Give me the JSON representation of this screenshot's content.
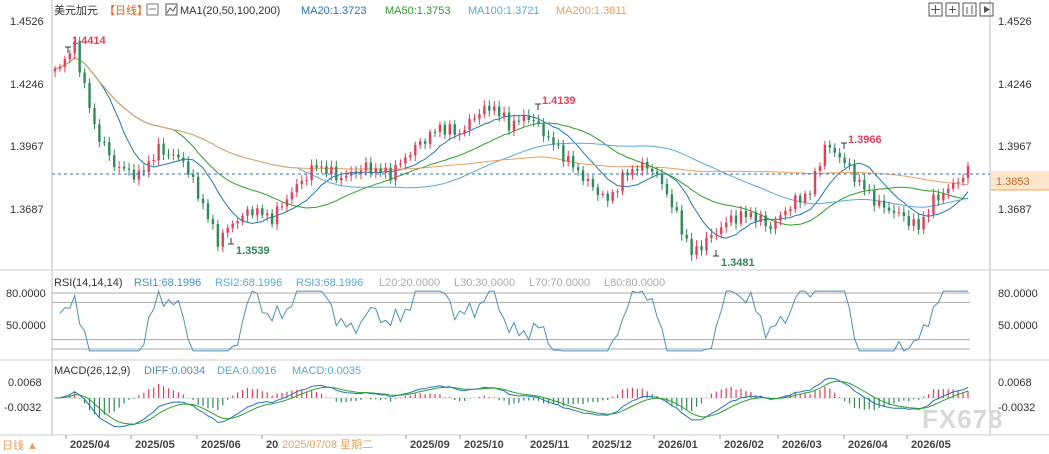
{
  "header": {
    "symbol": "美元加元",
    "period": "【日线】",
    "ma_indicator": "MA1(20,50,100,200)",
    "ma20": "MA20:1.3723",
    "ma50": "MA50:1.3753",
    "ma100": "MA100:1.3721",
    "ma200": "MA200:1.3811"
  },
  "rsi_header": {
    "name": "RSI(14,14,14)",
    "rsi1": "RSI1:68.1996",
    "rsi2": "RSI2:68.1996",
    "rsi3": "RSI3:68.1996",
    "l20": "L20:20.0000",
    "l30": "L30:30.0000",
    "l70": "L70:70.0000",
    "l80": "L80:80.0000"
  },
  "macd_header": {
    "name": "MACD(26,12,9)",
    "diff": "DIFF:0.0034",
    "dea": "DEA:0.0016",
    "macd": "MACD:0.0035"
  },
  "annotations": {
    "high1": "1.4414",
    "high2": "1.4139",
    "high3": "1.3966",
    "low1": "1.3539",
    "low2": "1.3481",
    "last_price": "1.3853"
  },
  "axes": {
    "price_ticks": [
      "1.4526",
      "1.4246",
      "1.3967",
      "1.3687"
    ],
    "rsi_ticks": [
      "80.0000",
      "50.0000"
    ],
    "macd_ticks": [
      "0.0068",
      "-0.0032"
    ],
    "date_ticks": [
      "2025/04",
      "2025/05",
      "2025/06",
      "2025/08",
      "2025/09",
      "2025/10",
      "2025/11",
      "2025/12",
      "2026/01",
      "2026/02",
      "2026/03",
      "2026/04",
      "2026/05"
    ],
    "cursor_date": "2025/07/08 星期二",
    "bottom_left": "日线 ▲"
  },
  "watermark": "FX678",
  "colors": {
    "up": "#e0405a",
    "down": "#2e8b57",
    "ma20": "#1f77b4",
    "ma50": "#2ca02c",
    "ma100": "#5aa9d6",
    "ma200": "#e8a060",
    "rsi": "#4a90c0",
    "last_price_bg": "#f7a35c"
  },
  "chart_data": [
    {
      "type": "candlestick",
      "title": "美元加元【日线】",
      "y_range": [
        1.345,
        1.4526
      ],
      "x_range": [
        "2025/03/20",
        "2026/05/15"
      ],
      "marked_points": [
        {
          "date": "2025/03/31",
          "value": 1.4414,
          "kind": "high"
        },
        {
          "date": "2025/06/16",
          "value": 1.3539,
          "kind": "low"
        },
        {
          "date": "2025/11/05",
          "value": 1.4139,
          "kind": "high"
        },
        {
          "date": "2026/01/12",
          "value": 1.3481,
          "kind": "low"
        },
        {
          "date": "2026/03/30",
          "value": 1.3966,
          "kind": "high"
        }
      ],
      "last_close": 1.3853,
      "moving_averages": [
        {
          "name": "MA20",
          "last": 1.3723
        },
        {
          "name": "MA50",
          "last": 1.3753
        },
        {
          "name": "MA100",
          "last": 1.3721
        },
        {
          "name": "MA200",
          "last": 1.3811
        }
      ]
    },
    {
      "type": "line",
      "title": "RSI(14,14,14)",
      "y_range": [
        0,
        100
      ],
      "reference_lines": [
        20,
        30,
        70,
        80
      ],
      "series": [
        {
          "name": "RSI1",
          "last": 68.1996
        }
      ]
    },
    {
      "type": "bar",
      "title": "MACD(26,12,9)",
      "series": [
        {
          "name": "DIFF",
          "last": 0.0034
        },
        {
          "name": "DEA",
          "last": 0.0016
        },
        {
          "name": "MACD",
          "last": 0.0035
        }
      ]
    }
  ]
}
